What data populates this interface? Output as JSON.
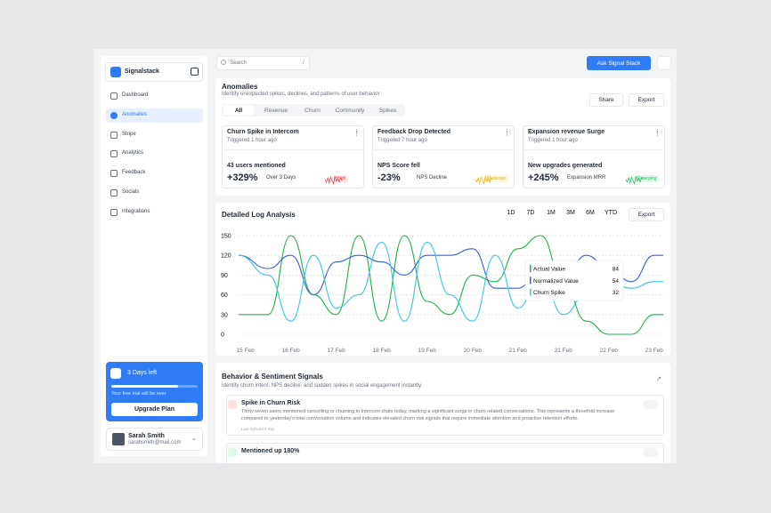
{
  "sidebar": {
    "brand": "Signalstack",
    "nav": [
      "Dashboard",
      "Anomalies",
      "Stripe",
      "Analytics",
      "Feedback",
      "Socials",
      "Integrations"
    ],
    "active": 1,
    "trial": {
      "title": "3 Days left",
      "text": "Your free trial will be over",
      "button": "Upgrade Plan"
    },
    "user": {
      "name": "Sarah Smith",
      "email": "sarahsmith@mail.com"
    }
  },
  "topbar": {
    "search": "Search",
    "shortcut": "/",
    "ask_button": "Ask Signal Stack"
  },
  "anomalies": {
    "title": "Anomalies",
    "subtitle": "Identify unexpected spikes, declines, and patterns of user behavior",
    "actions": [
      "Share",
      "Export"
    ],
    "tabs": [
      "All",
      "Revenue",
      "Churn",
      "Community",
      "Spikes"
    ],
    "cards": [
      {
        "title": "Churn Spike in Intercom",
        "meta": "Triggered 1 hour ago",
        "metric": "43 users mentioned",
        "value": "+329%",
        "note": "Over 3 Days",
        "badge": "High",
        "color": "#ef4444"
      },
      {
        "title": "Feedback Drop Detected",
        "meta": "Triggered 7 hour ago",
        "metric": "NPS Score fell",
        "value": "-23%",
        "note": "NPS Decline",
        "badge": "Moderate",
        "color": "#eab308"
      },
      {
        "title": "Expansion revenue Surge",
        "meta": "Triggered 1 hour ago",
        "metric": "New upgrades generated",
        "value": "+245%",
        "note": "Expansion MRR",
        "badge": "Emerging",
        "color": "#22c55e"
      }
    ]
  },
  "log_analysis": {
    "title": "Detailed Log Analysis",
    "ranges": [
      "1D",
      "7D",
      "1M",
      "3M",
      "6M",
      "YTD"
    ],
    "export": "Export",
    "chart": {
      "type": "line",
      "x": [
        -0.15,
        0.5,
        1,
        1.5,
        2,
        2.5,
        3,
        3.5,
        4,
        4.5,
        5,
        5.5,
        6,
        6.5,
        7,
        7.5,
        8,
        8.5,
        9,
        9.2
      ],
      "xlim": [
        -0.15,
        9.2
      ],
      "xticks": [
        {
          "value": 0,
          "label": "15 Feb"
        },
        {
          "value": 1,
          "label": "16 Feb"
        },
        {
          "value": 2,
          "label": "17 Feb"
        },
        {
          "value": 3,
          "label": "18 Feb"
        },
        {
          "value": 4,
          "label": "19 Feb"
        },
        {
          "value": 5,
          "label": "20 Feb"
        },
        {
          "value": 6,
          "label": "21 Feb"
        },
        {
          "value": 7,
          "label": "21 Feb"
        },
        {
          "value": 8,
          "label": "22 Feb"
        },
        {
          "value": 9,
          "label": "23 Feb"
        }
      ],
      "ylim": [
        0,
        150
      ],
      "yticks": [
        0,
        30,
        60,
        90,
        120,
        150
      ],
      "grid": true,
      "series": [
        {
          "name": "Actual Value",
          "color": "#22b04b",
          "values": [
            30,
            30,
            150,
            60,
            30,
            150,
            20,
            150,
            50,
            30,
            90,
            80,
            130,
            150,
            80,
            20,
            0,
            0,
            30,
            30
          ]
        },
        {
          "name": "Normalized Value",
          "color": "#3b5fd9",
          "values": [
            120,
            100,
            120,
            60,
            110,
            120,
            110,
            90,
            120,
            120,
            130,
            70,
            70,
            100,
            80,
            120,
            100,
            80,
            120,
            120
          ]
        },
        {
          "name": "Churn Spike",
          "color": "#38c6e0",
          "values": [
            120,
            90,
            20,
            120,
            40,
            60,
            140,
            20,
            140,
            60,
            20,
            120,
            40,
            90,
            30,
            60,
            80,
            70,
            80,
            80
          ]
        }
      ],
      "tooltip": [
        84,
        54,
        32
      ]
    }
  },
  "signals": {
    "title": "Behavior & Sentiment Signals",
    "subtitle": "Identify churn intent, NPS decline, and sudden spikes in social engagement instantly.",
    "items": [
      {
        "title": "Spike in Churn Risk",
        "text": "Thirty seven users mentioned cancelling or churning in Intercom chats today, marking a significant surge in churn related conversations. This represents a threefold increase compared to yesterday's total conversation volume and indicates elevated churn risk signals that require immediate attention and proactive retention efforts.",
        "meta": "Last Synced 4 min"
      },
      {
        "title": "Mentioned up 180%"
      }
    ]
  }
}
